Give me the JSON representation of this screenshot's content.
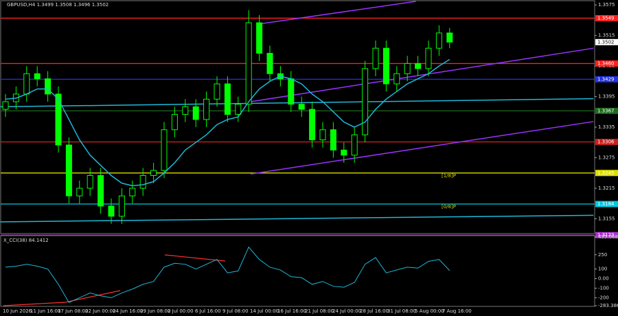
{
  "chart_data": {
    "type": "candlestick",
    "title": "GBPUSD,H4  1.3499 1.3508 1.3496 1.3502",
    "open": [
      1.337,
      1.3385,
      1.34,
      1.344,
      1.343,
      1.34,
      1.33,
      1.32,
      1.3215,
      1.324,
      1.318,
      1.316,
      1.32,
      1.3215,
      1.324,
      1.325,
      1.333,
      1.336,
      1.3375,
      1.335,
      1.339,
      1.342,
      1.336,
      1.338,
      1.354,
      1.348,
      1.344,
      1.343,
      1.338,
      1.337,
      1.331,
      1.333,
      1.329,
      1.328,
      1.332,
      1.345,
      1.349,
      1.342,
      1.344,
      1.346,
      1.345,
      1.349,
      1.352
    ],
    "high": [
      1.34,
      1.3415,
      1.3455,
      1.3455,
      1.3445,
      1.3415,
      1.3315,
      1.323,
      1.3255,
      1.3255,
      1.3195,
      1.3215,
      1.323,
      1.3255,
      1.3265,
      1.3345,
      1.3375,
      1.339,
      1.339,
      1.3405,
      1.3435,
      1.3435,
      1.3395,
      1.3565,
      1.3555,
      1.3495,
      1.3455,
      1.3445,
      1.3395,
      1.3385,
      1.3345,
      1.3345,
      1.3305,
      1.3335,
      1.3465,
      1.3505,
      1.3505,
      1.3455,
      1.3475,
      1.3475,
      1.3505,
      1.3535,
      1.353
    ],
    "low": [
      1.3355,
      1.337,
      1.3385,
      1.3415,
      1.3385,
      1.3285,
      1.3185,
      1.3185,
      1.32,
      1.3165,
      1.3145,
      1.3145,
      1.3185,
      1.32,
      1.3225,
      1.3235,
      1.3315,
      1.3345,
      1.3335,
      1.3335,
      1.3375,
      1.3345,
      1.3345,
      1.3365,
      1.3465,
      1.3425,
      1.3415,
      1.3365,
      1.3355,
      1.3295,
      1.3295,
      1.3275,
      1.3265,
      1.3265,
      1.3305,
      1.3435,
      1.3405,
      1.3405,
      1.3425,
      1.3435,
      1.3435,
      1.3475,
      1.349
    ],
    "close": [
      1.3385,
      1.34,
      1.344,
      1.343,
      1.34,
      1.33,
      1.32,
      1.3215,
      1.324,
      1.318,
      1.316,
      1.32,
      1.3215,
      1.324,
      1.325,
      1.333,
      1.336,
      1.3375,
      1.335,
      1.339,
      1.342,
      1.336,
      1.338,
      1.354,
      1.348,
      1.344,
      1.343,
      1.338,
      1.337,
      1.331,
      1.333,
      1.329,
      1.328,
      1.332,
      1.345,
      1.349,
      1.342,
      1.344,
      1.346,
      1.345,
      1.349,
      1.352,
      1.3502
    ],
    "up_color": "#00ff00",
    "ma": {
      "color": "#1fb8d8",
      "values": [
        1.339,
        1.3392,
        1.34,
        1.341,
        1.341,
        1.339,
        1.335,
        1.331,
        1.328,
        1.326,
        1.324,
        1.3225,
        1.322,
        1.3222,
        1.3228,
        1.3245,
        1.3265,
        1.329,
        1.3305,
        1.332,
        1.334,
        1.335,
        1.3355,
        1.3385,
        1.341,
        1.3425,
        1.3435,
        1.343,
        1.342,
        1.34,
        1.3385,
        1.3365,
        1.3345,
        1.3335,
        1.3345,
        1.337,
        1.339,
        1.3405,
        1.342,
        1.343,
        1.344,
        1.3455,
        1.3468
      ]
    },
    "lines": [
      {
        "color": "#9933ff",
        "x": [
          23.8,
          38.8
        ],
        "values": [
          1.3537,
          1.3582
        ]
      },
      {
        "color": "#9933ff",
        "x": [
          23.2,
          55.6
        ],
        "values": [
          1.3385,
          1.349
        ]
      },
      {
        "color": "#9933ff",
        "x": [
          23.2,
          55.6
        ],
        "values": [
          1.3243,
          1.3346
        ]
      },
      {
        "color": "#1fb8d8",
        "x": [
          -0.5,
          55.6
        ],
        "values": [
          1.3375,
          1.3391
        ]
      },
      {
        "color": "#1fb8d8",
        "x": [
          -0.5,
          55.6
        ],
        "values": [
          1.3149,
          1.3162
        ]
      }
    ],
    "levels": [
      {
        "value": 1.3549,
        "color": "#ff2020",
        "label": "1.3549"
      },
      {
        "value": 1.346,
        "color": "#ff2020",
        "label": "1.3460"
      },
      {
        "value": 1.3429,
        "color": "#2233dd",
        "label": "1.3429"
      },
      {
        "value": 1.3367,
        "color": "#1d6b1d",
        "label": "1.3367"
      },
      {
        "value": 1.3306,
        "color": "#cc1f1f",
        "label": "1.3306"
      },
      {
        "value": 1.3245,
        "color": "#dddd00",
        "label": "1.3245"
      },
      {
        "value": 1.3184,
        "color": "#00c8e0",
        "label": "1.3184"
      },
      {
        "value": 1.3123,
        "color": "#aa33cc",
        "label": "1.3123"
      }
    ],
    "level_tags": [
      {
        "value": 1.3245,
        "label": "[1/8]P"
      },
      {
        "value": 1.3184,
        "label": "[0/8]P"
      }
    ],
    "last_price": 1.3502,
    "ylim": [
      1.3126,
      1.3582
    ],
    "yticks": [
      1.3575,
      1.3515,
      1.3455,
      1.3395,
      1.3335,
      1.3275,
      1.3215,
      1.3155
    ],
    "time_labels": [
      "10 Jun 2026",
      "11 Jun 16:00",
      "17 Jun 08:00",
      "22 Jun 00:00",
      "24 Jun 16:00",
      "29 Jun 08:00",
      "2 Jul 00:00",
      "6 Jul 16:00",
      "9 Jul 08:00",
      "14 Jul 00:00",
      "16 Jul 16:00",
      "21 Jul 08:00",
      "24 Jul 00:00",
      "28 Jul 16:00",
      "31 Jul 08:00",
      "5 Aug 00:00",
      "7 Aug 16:00"
    ],
    "cci": {
      "title": "X_CCI(38) 84.1412",
      "color": "#1fb8d8",
      "values": [
        120,
        130,
        150,
        130,
        100,
        -60,
        -250,
        -200,
        -150,
        -180,
        -200,
        -150,
        -110,
        -60,
        -30,
        120,
        160,
        150,
        100,
        150,
        200,
        60,
        80,
        330,
        200,
        120,
        90,
        20,
        10,
        -60,
        -30,
        -80,
        -90,
        -40,
        150,
        220,
        60,
        90,
        120,
        110,
        180,
        200,
        84
      ],
      "ylim": [
        -283.386,
        435.0684
      ],
      "yticks": [
        435.0684,
        250,
        100,
        {
          "value": 0,
          "label": "0.00"
        },
        -100,
        -200,
        -283.386
      ]
    }
  }
}
